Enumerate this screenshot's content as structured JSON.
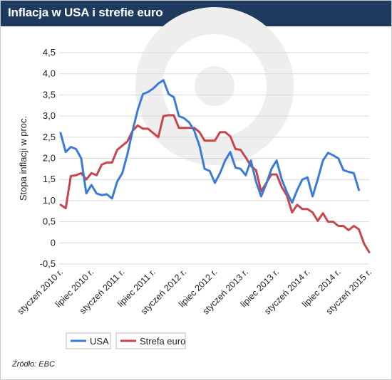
{
  "title": "Inflacja w USA i strefie euro",
  "source": "Źródło: EBC",
  "colors": {
    "header": "#1f3a5f",
    "usa": "#3b7bd8",
    "euro": "#c8454c",
    "grid": "#d9d9d9",
    "watermark": "#eeeeee"
  },
  "chart_data": {
    "type": "line",
    "ylabel": "Stopa inflacji w proc.",
    "ylim": [
      -0.5,
      4.5
    ],
    "yticks": [
      -0.5,
      0,
      0.5,
      1.0,
      1.5,
      2.0,
      2.5,
      3.0,
      3.5,
      4.0,
      4.5
    ],
    "ytick_labels": [
      "-0,5",
      "0",
      "0,5",
      "1,0",
      "1,5",
      "2,0",
      "2,5",
      "3,0",
      "3,5",
      "4,0",
      "4,5"
    ],
    "xtick_labels": [
      "styczeń 2010 r.",
      "lipiec 2010 r.",
      "styczeń 2011 r.",
      "lipiec 2011 r.",
      "styczeń 2012 r.",
      "lipiec 2012 r.",
      "styczeń 2013 r.",
      "lipiec 2013 r.",
      "styczeń 2014 r.",
      "lipiec 2014 r.",
      "styczeń 2015 r."
    ],
    "x": [
      "2010-01",
      "2010-02",
      "2010-03",
      "2010-04",
      "2010-05",
      "2010-06",
      "2010-07",
      "2010-08",
      "2010-09",
      "2010-10",
      "2010-11",
      "2010-12",
      "2011-01",
      "2011-02",
      "2011-03",
      "2011-04",
      "2011-05",
      "2011-06",
      "2011-07",
      "2011-08",
      "2011-09",
      "2011-10",
      "2011-11",
      "2011-12",
      "2012-01",
      "2012-02",
      "2012-03",
      "2012-04",
      "2012-05",
      "2012-06",
      "2012-07",
      "2012-08",
      "2012-09",
      "2012-10",
      "2012-11",
      "2012-12",
      "2013-01",
      "2013-02",
      "2013-03",
      "2013-04",
      "2013-05",
      "2013-06",
      "2013-07",
      "2013-08",
      "2013-09",
      "2013-10",
      "2013-11",
      "2013-12",
      "2014-01",
      "2014-02",
      "2014-03",
      "2014-04",
      "2014-05",
      "2014-06",
      "2014-07",
      "2014-08",
      "2014-09",
      "2014-10",
      "2014-11",
      "2014-12",
      "2015-01"
    ],
    "series": [
      {
        "name": "USA",
        "color": "#3b7bd8",
        "values": [
          2.6,
          2.15,
          2.27,
          2.22,
          2.0,
          1.17,
          1.37,
          1.17,
          1.13,
          1.15,
          1.05,
          1.45,
          1.65,
          2.1,
          2.65,
          3.15,
          3.52,
          3.57,
          3.65,
          3.77,
          3.85,
          3.52,
          3.45,
          3.0,
          2.95,
          2.85,
          2.65,
          2.3,
          1.75,
          1.7,
          1.42,
          1.65,
          1.95,
          2.15,
          1.78,
          1.75,
          1.6,
          1.95,
          1.45,
          1.1,
          1.4,
          1.75,
          1.95,
          1.5,
          1.2,
          0.95,
          1.25,
          1.5,
          1.55,
          1.1,
          1.5,
          1.95,
          2.13,
          2.07,
          2.0,
          1.72,
          1.68,
          1.65,
          1.25,
          null,
          null
        ]
      },
      {
        "name": "Strefa euro",
        "color": "#c8454c",
        "values": [
          0.9,
          0.82,
          1.58,
          1.6,
          1.65,
          1.5,
          1.65,
          1.6,
          1.85,
          1.9,
          1.9,
          2.2,
          2.3,
          2.4,
          2.65,
          2.78,
          2.7,
          2.7,
          2.6,
          2.5,
          3.0,
          3.02,
          3.02,
          2.72,
          2.72,
          2.72,
          2.72,
          2.62,
          2.42,
          2.42,
          2.42,
          2.62,
          2.62,
          2.52,
          2.22,
          2.2,
          2.02,
          1.82,
          1.72,
          1.22,
          1.42,
          1.62,
          1.62,
          1.32,
          1.12,
          0.72,
          0.9,
          0.8,
          0.8,
          0.72,
          0.52,
          0.7,
          0.5,
          0.5,
          0.4,
          0.4,
          0.3,
          0.4,
          0.32,
          -0.02,
          -0.22
        ]
      }
    ],
    "legend_position": "bottom-left",
    "grid": true
  }
}
